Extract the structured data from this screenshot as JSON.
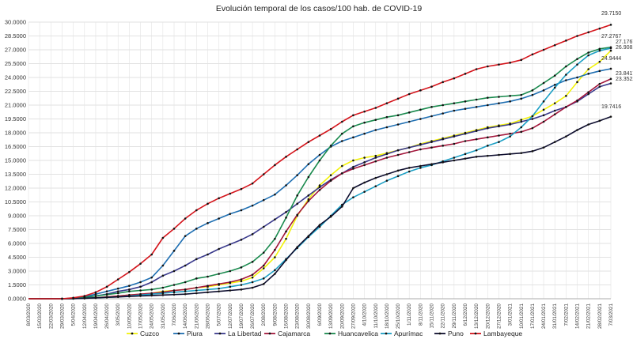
{
  "chart_data": {
    "type": "line",
    "title": "Evolución temporal de los casos/100 hab. de COVID-19",
    "xlabel": "",
    "ylabel": "",
    "ylim": [
      0,
      30
    ],
    "y_tick_labels": [
      "0.0000",
      "1.5000",
      "3.0000",
      "4.5000",
      "6.0000",
      "7.5000",
      "9.0000",
      "10.5000",
      "12.0000",
      "13.5000",
      "15.0000",
      "16.5000",
      "18.0000",
      "19.5000",
      "21.0000",
      "22.5000",
      "24.0000",
      "25.5000",
      "27.0000",
      "28.5000",
      "30.0000"
    ],
    "x_tick_labels": [
      "8/03/2020",
      "15/03/2020",
      "22/03/2020",
      "29/03/2020",
      "5/04/2020",
      "12/04/2020",
      "19/04/2020",
      "26/04/2020",
      "3/05/2020",
      "10/05/2020",
      "17/05/2020",
      "24/05/2020",
      "31/05/2020",
      "7/06/2020",
      "14/06/2020",
      "21/06/2020",
      "28/06/2020",
      "5/07/2020",
      "12/07/2020",
      "19/07/2020",
      "26/07/2020",
      "2/08/2020",
      "9/08/2020",
      "16/08/2020",
      "23/08/2020",
      "30/08/2020",
      "6/09/2020",
      "13/09/2020",
      "20/09/2020",
      "27/09/2020",
      "4/10/2020",
      "11/10/2020",
      "18/10/2020",
      "25/10/2020",
      "1/11/2020",
      "8/11/2020",
      "15/11/2020",
      "22/11/2020",
      "29/11/2020",
      "6/12/2020",
      "13/12/2020",
      "20/12/2020",
      "27/12/2020",
      "3/01/2021",
      "10/01/2021",
      "17/01/2021",
      "24/01/2021",
      "31/01/2021",
      "7/02/2021",
      "14/02/2021",
      "21/02/2021",
      "28/02/2021",
      "7/03/2021"
    ],
    "grid": true,
    "legend_position": "bottom",
    "end_labels": [
      "29.7150",
      "27.2767",
      "27.1767",
      "26.9081",
      "24.9444",
      "23.8417",
      "23.3522",
      "19.7416"
    ],
    "series": [
      {
        "name": "Cuzco",
        "color": "#f2f20a",
        "values": [
          0,
          0,
          0,
          0,
          0.02,
          0.05,
          0.1,
          0.2,
          0.3,
          0.4,
          0.5,
          0.6,
          0.8,
          0.9,
          1.0,
          1.2,
          1.3,
          1.5,
          1.7,
          1.9,
          2.3,
          3.3,
          4.5,
          6.5,
          9.0,
          10.8,
          12.3,
          13.4,
          14.4,
          15.0,
          15.3,
          15.5,
          15.8,
          16.1,
          16.4,
          16.8,
          17.1,
          17.4,
          17.7,
          18.0,
          18.3,
          18.6,
          18.8,
          19.0,
          19.4,
          19.8,
          20.5,
          21.2,
          22.0,
          23.5,
          24.9,
          25.7,
          26.9081
        ]
      },
      {
        "name": "Piura",
        "color": "#1f6fb2",
        "values": [
          0,
          0,
          0,
          0,
          0.05,
          0.2,
          0.5,
          0.8,
          1.1,
          1.4,
          1.8,
          2.3,
          3.6,
          5.2,
          6.8,
          7.6,
          8.2,
          8.7,
          9.2,
          9.6,
          10.1,
          10.7,
          11.3,
          12.3,
          13.4,
          14.6,
          15.6,
          16.5,
          17.1,
          17.5,
          17.9,
          18.3,
          18.6,
          18.9,
          19.2,
          19.5,
          19.8,
          20.1,
          20.4,
          20.6,
          20.8,
          21.0,
          21.2,
          21.4,
          21.7,
          22.1,
          22.6,
          23.2,
          23.7,
          24.0,
          24.4,
          24.7,
          24.9444
        ]
      },
      {
        "name": "La Libertad",
        "color": "#3a3a8c",
        "values": [
          0,
          0,
          0,
          0,
          0.05,
          0.15,
          0.3,
          0.5,
          0.8,
          1.0,
          1.3,
          1.8,
          2.5,
          3.0,
          3.6,
          4.3,
          4.8,
          5.4,
          5.9,
          6.4,
          7.0,
          7.8,
          8.6,
          9.4,
          10.3,
          11.2,
          12.1,
          12.9,
          13.6,
          14.3,
          14.8,
          15.3,
          15.7,
          16.1,
          16.4,
          16.7,
          17.0,
          17.3,
          17.6,
          17.9,
          18.2,
          18.5,
          18.7,
          18.9,
          19.2,
          19.5,
          19.9,
          20.4,
          20.8,
          21.4,
          22.2,
          23.0,
          23.3522
        ]
      },
      {
        "name": "Cajamarca",
        "color": "#a3163b",
        "values": [
          0,
          0,
          0,
          0,
          0.02,
          0.05,
          0.1,
          0.2,
          0.3,
          0.4,
          0.5,
          0.6,
          0.7,
          0.9,
          1.0,
          1.2,
          1.4,
          1.6,
          1.8,
          2.1,
          2.6,
          3.6,
          5.3,
          7.3,
          9.1,
          10.6,
          11.8,
          12.8,
          13.6,
          14.1,
          14.5,
          14.9,
          15.3,
          15.6,
          15.9,
          16.2,
          16.4,
          16.6,
          16.8,
          17.1,
          17.3,
          17.5,
          17.7,
          17.9,
          18.1,
          18.5,
          19.2,
          20.0,
          20.8,
          21.5,
          22.4,
          23.3,
          23.8417
        ]
      },
      {
        "name": "Huancavelica",
        "color": "#1a8a4e",
        "values": [
          0,
          0,
          0,
          0,
          0.05,
          0.15,
          0.3,
          0.45,
          0.6,
          0.8,
          0.9,
          1.0,
          1.2,
          1.5,
          1.8,
          2.2,
          2.4,
          2.7,
          3.0,
          3.4,
          4.0,
          5.0,
          6.5,
          8.8,
          11.2,
          13.2,
          15.0,
          16.6,
          17.9,
          18.7,
          19.1,
          19.4,
          19.7,
          19.9,
          20.2,
          20.5,
          20.8,
          21.0,
          21.2,
          21.4,
          21.6,
          21.8,
          21.9,
          22.0,
          22.1,
          22.6,
          23.4,
          24.2,
          25.2,
          26.0,
          26.7,
          27.1,
          27.2767
        ]
      },
      {
        "name": "Apurímac",
        "color": "#1c9fc4",
        "values": [
          0,
          0,
          0,
          0,
          0.02,
          0.05,
          0.1,
          0.15,
          0.2,
          0.3,
          0.4,
          0.5,
          0.6,
          0.7,
          0.8,
          0.9,
          1.0,
          1.1,
          1.3,
          1.5,
          1.8,
          2.2,
          3.1,
          4.3,
          5.5,
          6.7,
          7.8,
          9.0,
          10.2,
          11.0,
          11.6,
          12.2,
          12.8,
          13.3,
          13.8,
          14.2,
          14.5,
          14.9,
          15.3,
          15.7,
          16.1,
          16.6,
          17.0,
          17.6,
          18.6,
          19.8,
          21.4,
          22.9,
          24.3,
          25.4,
          26.4,
          26.9,
          27.1767
        ]
      },
      {
        "name": "Puno",
        "color": "#0d0d2e",
        "values": [
          0,
          0,
          0,
          0,
          0.02,
          0.05,
          0.1,
          0.15,
          0.2,
          0.25,
          0.3,
          0.35,
          0.4,
          0.45,
          0.5,
          0.6,
          0.7,
          0.8,
          0.9,
          1.0,
          1.2,
          1.6,
          2.7,
          4.2,
          5.6,
          6.8,
          8.0,
          8.9,
          10.0,
          12.0,
          12.6,
          13.1,
          13.5,
          13.9,
          14.2,
          14.4,
          14.6,
          14.8,
          15.0,
          15.2,
          15.4,
          15.5,
          15.6,
          15.7,
          15.8,
          16.0,
          16.4,
          17.0,
          17.6,
          18.3,
          18.9,
          19.3,
          19.7416
        ]
      },
      {
        "name": "Lambayeque",
        "color": "#d4141b",
        "values": [
          0,
          0,
          0,
          0,
          0.1,
          0.3,
          0.7,
          1.3,
          2.1,
          2.9,
          3.8,
          4.8,
          6.6,
          7.6,
          8.7,
          9.6,
          10.3,
          10.9,
          11.4,
          11.9,
          12.5,
          13.5,
          14.5,
          15.4,
          16.2,
          17.0,
          17.7,
          18.4,
          19.2,
          19.9,
          20.3,
          20.7,
          21.2,
          21.7,
          22.2,
          22.6,
          23.0,
          23.5,
          23.9,
          24.4,
          24.9,
          25.2,
          25.4,
          25.6,
          25.9,
          26.5,
          27.0,
          27.5,
          28.0,
          28.5,
          28.9,
          29.3,
          29.715
        ]
      }
    ]
  }
}
